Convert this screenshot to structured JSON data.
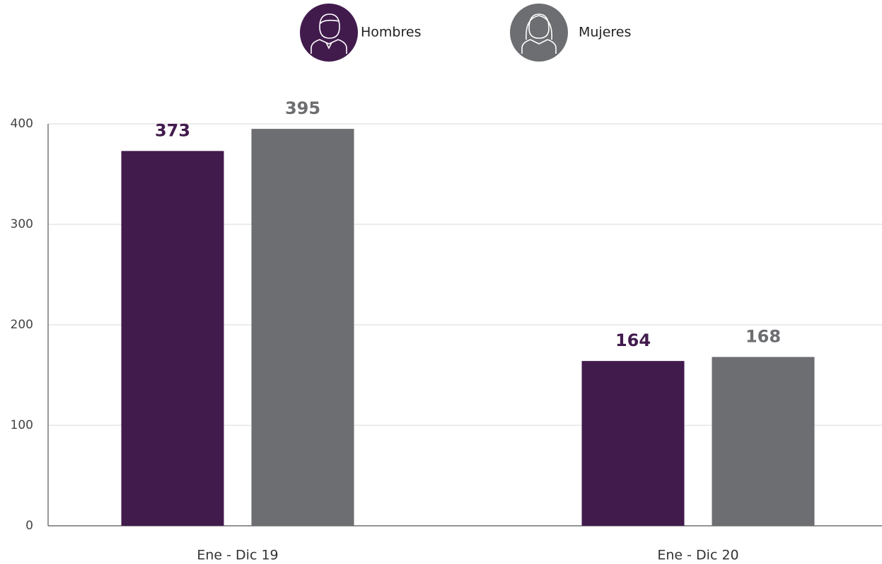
{
  "chart_data": {
    "type": "bar",
    "categories": [
      "Ene - Dic 19",
      "Ene - Dic 20"
    ],
    "series": [
      {
        "name": "Hombres",
        "color": "#421b4d",
        "values": [
          373,
          164
        ]
      },
      {
        "name": "Mujeres",
        "color": "#6d6e71",
        "values": [
          395,
          168
        ]
      }
    ],
    "ylim": [
      0,
      400
    ],
    "yticks": [
      0,
      100,
      200,
      300,
      400
    ],
    "grid": true,
    "legend": "top"
  }
}
